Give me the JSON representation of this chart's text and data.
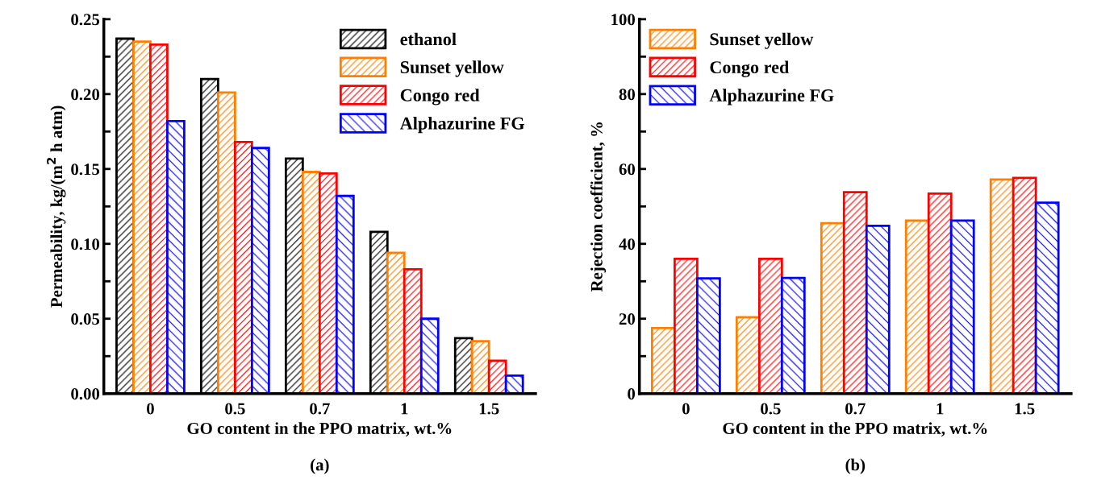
{
  "chart_data": [
    {
      "type": "bar",
      "xlabel": "GO content in the PPO matrix, wt.%",
      "ylabel": "Permeability, kg/(m$^{2}$ h atm)",
      "categories": [
        "0",
        "0.5",
        "0.7",
        "1",
        "1.5"
      ],
      "series": [
        {
          "name": "ethanol",
          "color": "#000000",
          "values": [
            0.237,
            0.21,
            0.157,
            0.108,
            0.037
          ]
        },
        {
          "name": "Sunset yellow",
          "color": "#ff8000",
          "values": [
            0.235,
            0.201,
            0.148,
            0.094,
            0.035
          ]
        },
        {
          "name": "Congo red",
          "color": "#ff0000",
          "values": [
            0.233,
            0.168,
            0.147,
            0.083,
            0.022
          ]
        },
        {
          "name": "Alphazurine FG",
          "color": "#0000ff",
          "values": [
            0.182,
            0.164,
            0.132,
            0.05,
            0.012
          ]
        }
      ],
      "ylim": [
        0,
        0.25
      ],
      "yticks": [
        {
          "value": 0,
          "label": "0.00"
        },
        {
          "value": 0.025,
          "label": null
        },
        {
          "value": 0.05,
          "label": "0.05"
        },
        {
          "value": 0.075,
          "label": null
        },
        {
          "value": 0.1,
          "label": "0.10"
        },
        {
          "value": 0.125,
          "label": null
        },
        {
          "value": 0.15,
          "label": "0.15"
        },
        {
          "value": 0.175,
          "label": null
        },
        {
          "value": 0.2,
          "label": "0.20"
        },
        {
          "value": 0.225,
          "label": null
        },
        {
          "value": 0.25,
          "label": "0.25"
        }
      ],
      "legend": "top right",
      "grid": false,
      "annotations": [
        "(a)"
      ]
    },
    {
      "type": "bar",
      "xlabel": "GO content in the PPO matrix, wt.%",
      "ylabel": "Rejection coefficient, %",
      "categories": [
        "0",
        "0.5",
        "0.7",
        "1",
        "1.5"
      ],
      "series": [
        {
          "name": "Sunset yellow",
          "color": "#ff8000",
          "values": [
            17.5,
            20.4,
            45.5,
            46.2,
            57.2
          ]
        },
        {
          "name": "Congo red",
          "color": "#ff0000",
          "values": [
            36,
            36,
            53.8,
            53.4,
            57.6
          ]
        },
        {
          "name": "Alphazurine FG",
          "color": "#0000ff",
          "values": [
            30.8,
            30.9,
            44.8,
            46.2,
            51
          ]
        }
      ],
      "ylim": [
        0,
        100
      ],
      "yticks": [
        0,
        {
          "value": 10,
          "label": null
        },
        20,
        {
          "value": 30,
          "label": null
        },
        40,
        {
          "value": 50,
          "label": null
        },
        60,
        {
          "value": 70,
          "label": null
        },
        80,
        {
          "value": 90,
          "label": null
        },
        100
      ],
      "legend": "top left",
      "grid": false,
      "annotations": [
        "(b)"
      ]
    }
  ]
}
